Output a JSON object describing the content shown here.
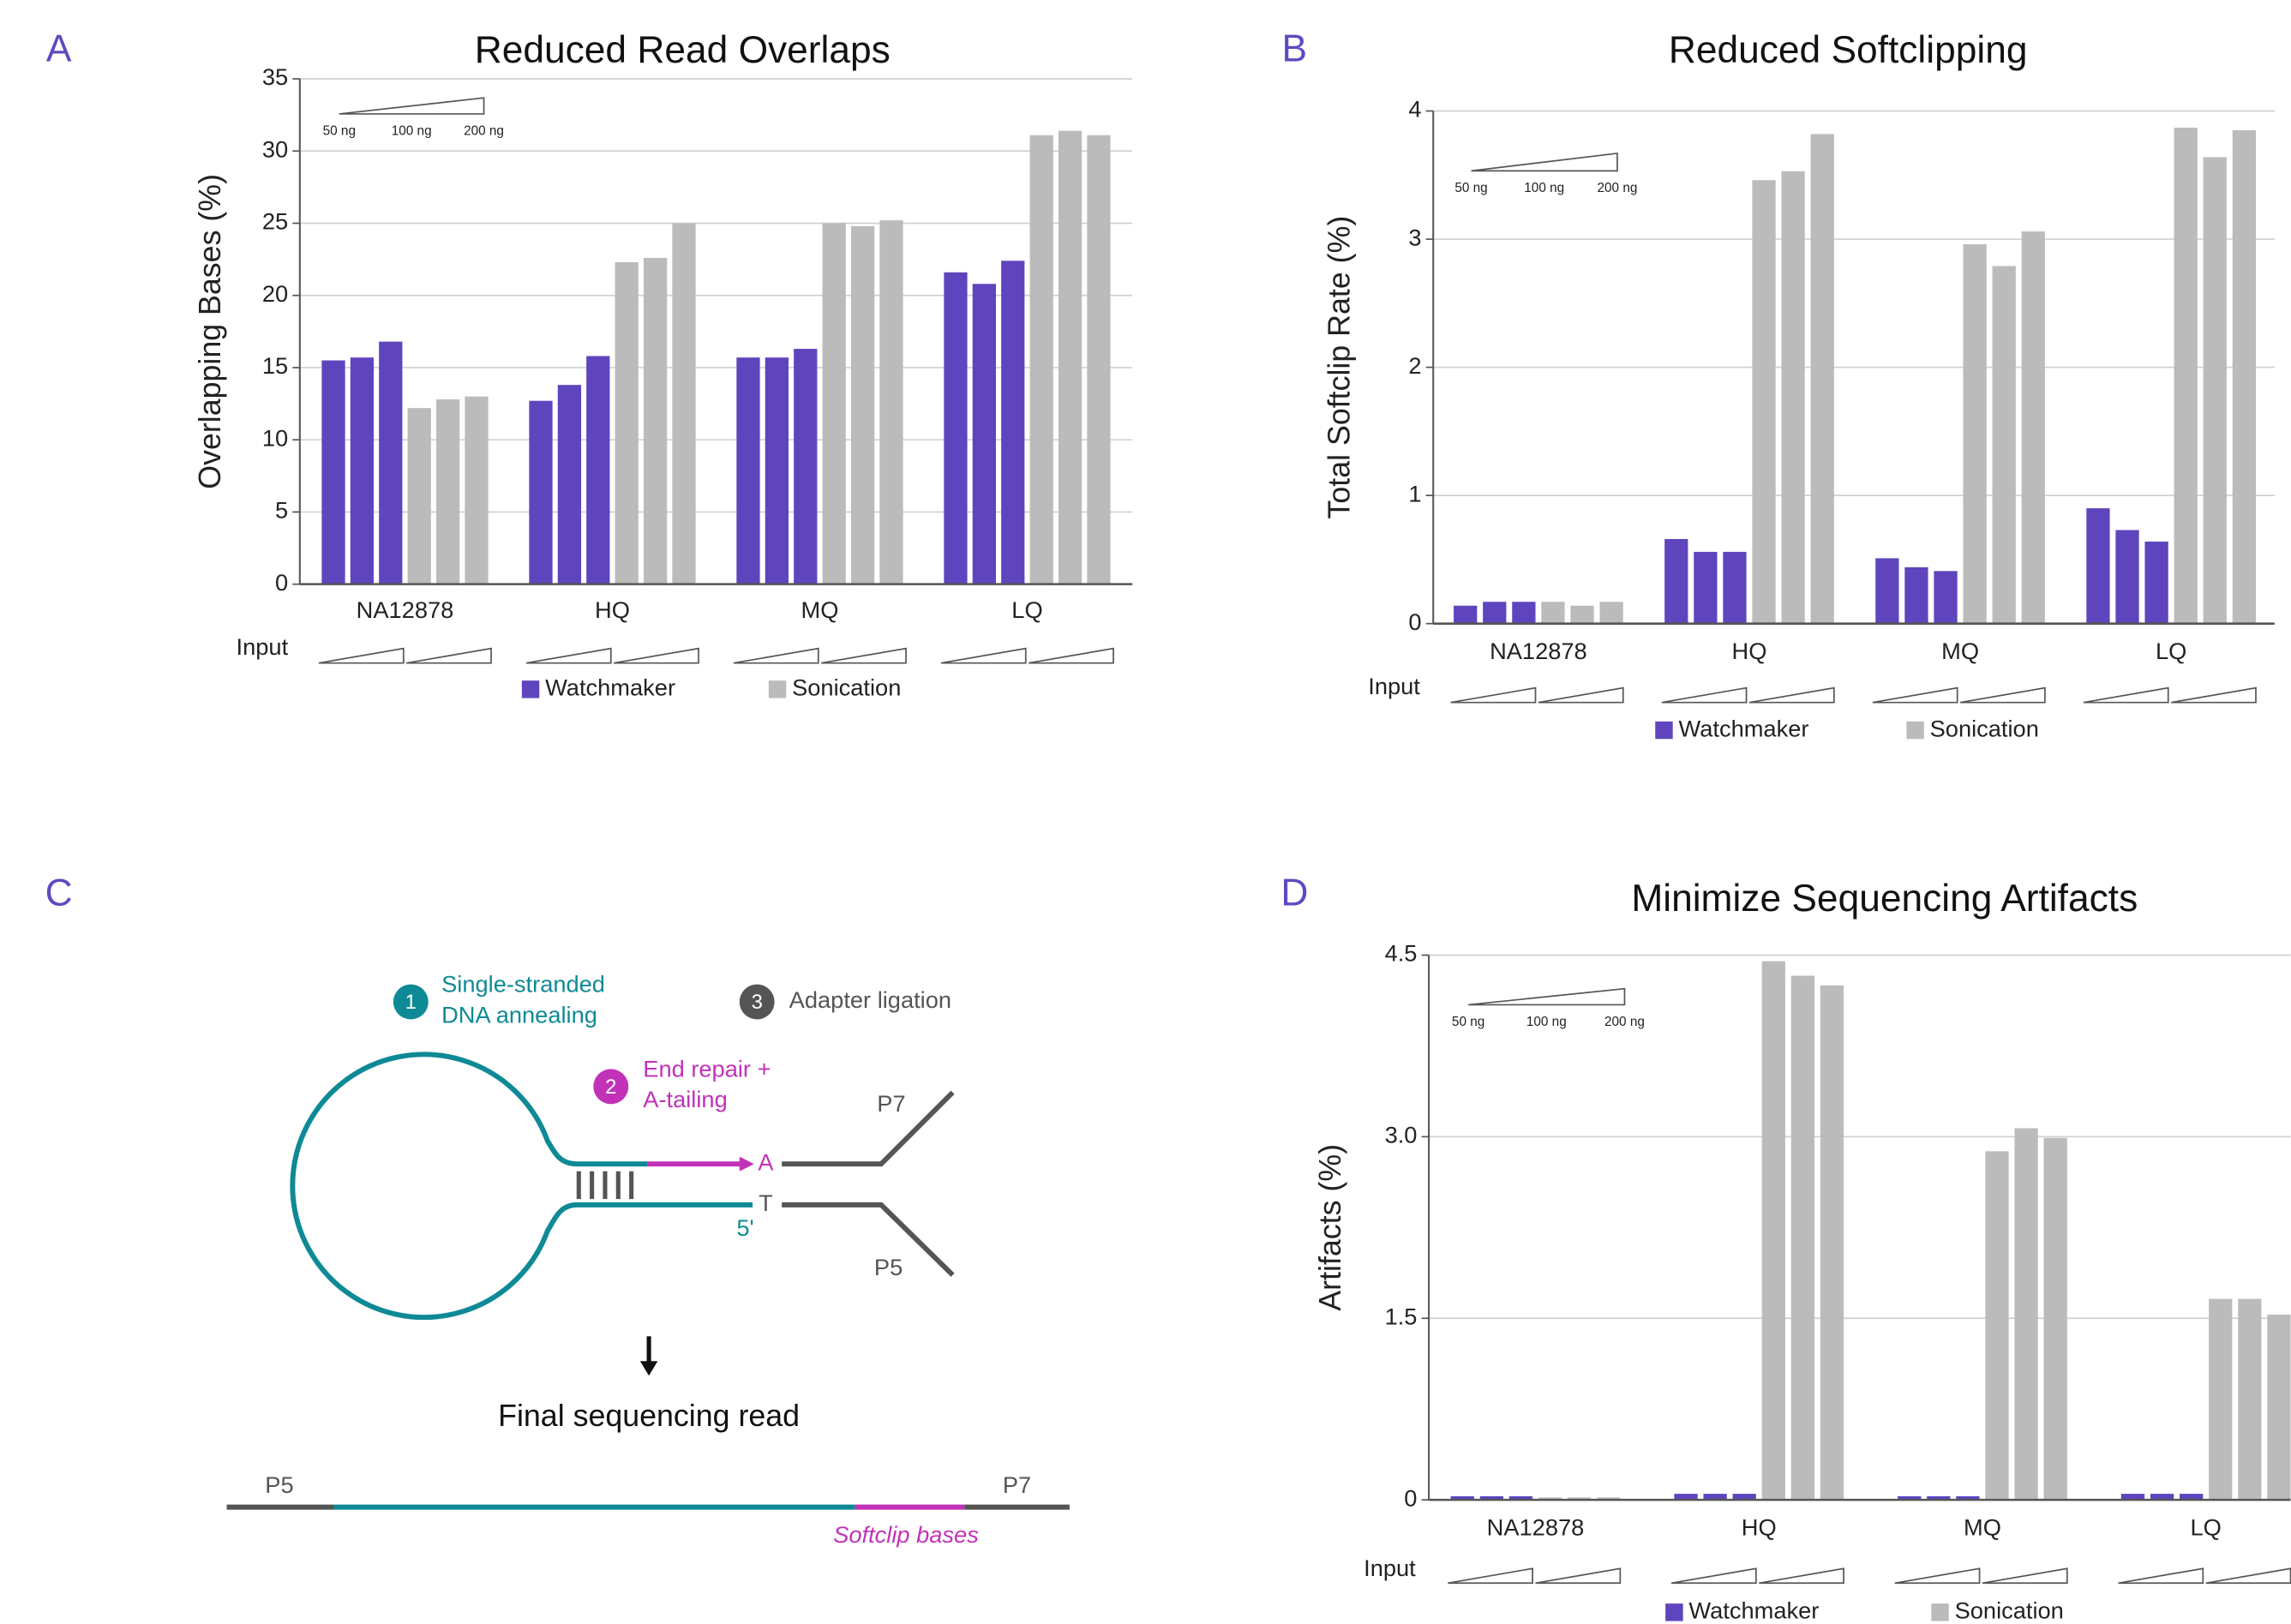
{
  "chart_data": [
    {
      "type": "bar",
      "panel_label": "A",
      "title": "Reduced Read Overlaps",
      "ylabel": "Overlapping Bases (%)",
      "categories": [
        "NA12878",
        "HQ",
        "MQ",
        "LQ"
      ],
      "series": [
        {
          "name": "Watchmaker",
          "color": "#5e45be",
          "values": [
            [
              15.5,
              15.7,
              16.8
            ],
            [
              12.7,
              13.8,
              15.8
            ],
            [
              15.7,
              15.7,
              16.3
            ],
            [
              21.6,
              20.8,
              22.4
            ]
          ]
        },
        {
          "name": "Sonication",
          "color": "#bbbbbb",
          "values": [
            [
              12.2,
              12.8,
              13.0
            ],
            [
              22.3,
              22.6,
              25.0
            ],
            [
              25.0,
              24.8,
              25.2
            ],
            [
              31.1,
              31.4,
              31.1
            ]
          ]
        }
      ],
      "ylim": [
        0,
        35
      ],
      "yticks": [
        0,
        5,
        10,
        15,
        20,
        25,
        30,
        35
      ],
      "grid": true,
      "input_label": "Input",
      "input_scale_labels": [
        "50 ng",
        "100 ng",
        "200 ng"
      ]
    },
    {
      "type": "bar",
      "panel_label": "B",
      "title": "Reduced Softclipping",
      "ylabel": "Total Softclip Rate (%)",
      "categories": [
        "NA12878",
        "HQ",
        "MQ",
        "LQ"
      ],
      "series": [
        {
          "name": "Watchmaker",
          "color": "#5e45be",
          "values": [
            [
              0.14,
              0.17,
              0.17
            ],
            [
              0.66,
              0.56,
              0.56
            ],
            [
              0.51,
              0.44,
              0.41
            ],
            [
              0.9,
              0.73,
              0.64
            ]
          ]
        },
        {
          "name": "Sonication",
          "color": "#bbbbbb",
          "values": [
            [
              0.17,
              0.14,
              0.17
            ],
            [
              3.46,
              3.53,
              3.82
            ],
            [
              2.96,
              2.79,
              3.06
            ],
            [
              3.87,
              3.64,
              3.85
            ]
          ]
        }
      ],
      "ylim": [
        0,
        4
      ],
      "yticks": [
        0,
        1,
        2,
        3,
        4
      ],
      "grid": true,
      "input_label": "Input",
      "input_scale_labels": [
        "50 ng",
        "100 ng",
        "200 ng"
      ]
    },
    {
      "type": "bar",
      "panel_label": "D",
      "title": "Minimize Sequencing Artifacts",
      "ylabel": "Artifacts (%)",
      "categories": [
        "NA12878",
        "HQ",
        "MQ",
        "LQ"
      ],
      "series": [
        {
          "name": "Watchmaker",
          "color": "#5e45be",
          "values": [
            [
              0.03,
              0.03,
              0.03
            ],
            [
              0.05,
              0.05,
              0.05
            ],
            [
              0.03,
              0.03,
              0.03
            ],
            [
              0.05,
              0.05,
              0.05
            ]
          ]
        },
        {
          "name": "Sonication",
          "color": "#bbbbbb",
          "values": [
            [
              0.02,
              0.02,
              0.02
            ],
            [
              4.45,
              4.33,
              4.25
            ],
            [
              2.88,
              3.07,
              2.99
            ],
            [
              1.66,
              1.66,
              1.53
            ]
          ]
        }
      ],
      "ylim": [
        0,
        4.5
      ],
      "yticks": [
        0,
        1.5,
        {
          "value": 3,
          "label": "3.0"
        },
        4.5
      ],
      "grid": true,
      "input_label": "Input",
      "input_scale_labels": [
        "50 ng",
        "100 ng",
        "200 ng"
      ]
    }
  ],
  "diagram": {
    "panel_label": "C",
    "steps": [
      {
        "number": 1,
        "lines": [
          "Single-stranded",
          "DNA annealing"
        ]
      },
      {
        "number": 2,
        "lines": [
          "End repair +",
          "A-tailing"
        ]
      },
      {
        "number": 3,
        "lines": [
          "Adapter ligation"
        ]
      }
    ],
    "base_top": "A",
    "base_bottom": "T",
    "five_prime": "5'",
    "adapter_top": "P7",
    "adapter_bottom": "P5",
    "final_title": "Final sequencing read",
    "read_left": "P5",
    "read_right": "P7",
    "softclip": "Softclip bases"
  }
}
